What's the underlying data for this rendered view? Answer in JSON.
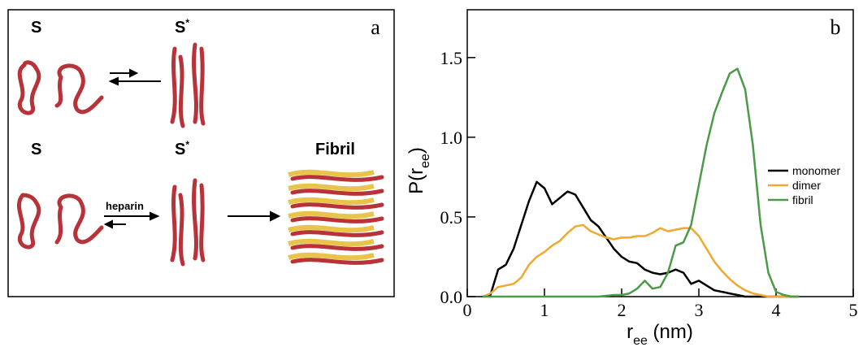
{
  "panel_a": {
    "label": "a",
    "top": {
      "left": "S",
      "right": [
        "S",
        "*"
      ]
    },
    "bottom": {
      "left": "S",
      "middle": [
        "S",
        "*"
      ],
      "right": "Fibril",
      "arrow_label": "heparin"
    }
  },
  "chart_data": {
    "type": "line",
    "panel_label": "b",
    "xlabel": [
      "r",
      "ee",
      " (nm)"
    ],
    "ylabel": [
      "P(r",
      "ee",
      ")"
    ],
    "x": [
      0.2,
      0.3,
      0.4,
      0.5,
      0.6,
      0.7,
      0.8,
      0.9,
      1.0,
      1.1,
      1.2,
      1.3,
      1.4,
      1.5,
      1.6,
      1.7,
      1.8,
      1.9,
      2.0,
      2.1,
      2.2,
      2.3,
      2.4,
      2.5,
      2.6,
      2.7,
      2.8,
      2.9,
      3.0,
      3.1,
      3.2,
      3.3,
      3.4,
      3.5,
      3.6,
      3.7,
      3.8,
      3.9,
      4.0,
      4.1,
      4.2,
      4.3
    ],
    "series": [
      {
        "name": "monomer",
        "color": "#000000",
        "values": [
          0,
          0.01,
          0.17,
          0.2,
          0.3,
          0.45,
          0.6,
          0.72,
          0.68,
          0.58,
          0.62,
          0.66,
          0.64,
          0.56,
          0.48,
          0.44,
          0.37,
          0.3,
          0.25,
          0.22,
          0.21,
          0.17,
          0.15,
          0.14,
          0.15,
          0.17,
          0.15,
          0.08,
          0.1,
          0.07,
          0.04,
          0.03,
          0.02,
          0.01,
          0,
          0,
          0,
          0,
          0,
          0,
          0,
          0
        ]
      },
      {
        "name": "dimer",
        "color": "#f0a830",
        "values": [
          0,
          0.02,
          0.06,
          0.07,
          0.08,
          0.12,
          0.2,
          0.25,
          0.28,
          0.32,
          0.35,
          0.4,
          0.44,
          0.45,
          0.41,
          0.39,
          0.37,
          0.36,
          0.37,
          0.37,
          0.38,
          0.38,
          0.4,
          0.43,
          0.41,
          0.42,
          0.43,
          0.43,
          0.38,
          0.3,
          0.22,
          0.16,
          0.11,
          0.07,
          0.04,
          0.02,
          0.01,
          0,
          0,
          0,
          0,
          0
        ]
      },
      {
        "name": "fibril",
        "color": "#4a9a48",
        "values": [
          0,
          0,
          0,
          0,
          0,
          0,
          0,
          0,
          0,
          0,
          0,
          0,
          0,
          0,
          0,
          0,
          0.005,
          0.01,
          0.01,
          0.02,
          0.05,
          0.1,
          0.05,
          0.06,
          0.15,
          0.32,
          0.34,
          0.45,
          0.7,
          0.95,
          1.15,
          1.28,
          1.4,
          1.43,
          1.3,
          0.95,
          0.45,
          0.15,
          0.03,
          0.01,
          0,
          0
        ]
      }
    ],
    "xlim": [
      0,
      5
    ],
    "xticks": [
      0,
      1,
      2,
      3,
      4,
      5
    ],
    "ylim": [
      0,
      1.8
    ],
    "yticks": [
      {
        "value": 0,
        "label": "0.0"
      },
      0.5,
      {
        "value": 1,
        "label": "1.0"
      },
      1.5
    ]
  }
}
